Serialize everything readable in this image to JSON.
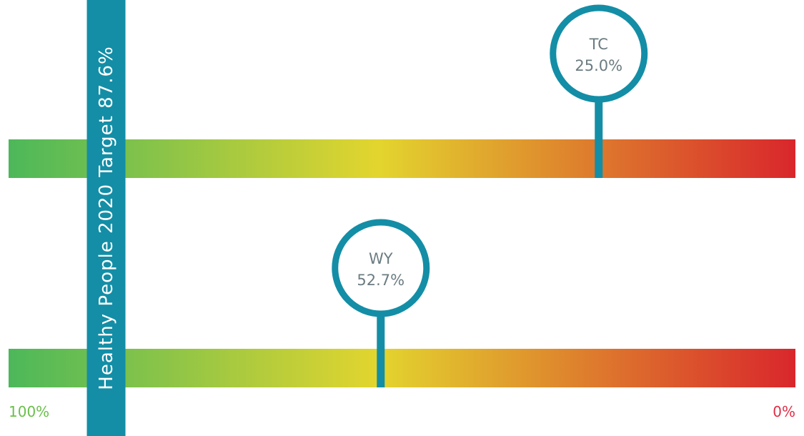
{
  "chart_data": {
    "type": "bar",
    "axis": {
      "min_label": "100%",
      "max_label": "0%",
      "range": [
        100,
        0
      ]
    },
    "target": {
      "label": "Healthy People 2020 Target 87.6%",
      "value": 87.6
    },
    "series": [
      {
        "label": "TC",
        "value": 25.0,
        "value_text": "25.0%"
      },
      {
        "label": "WY",
        "value": 52.7,
        "value_text": "52.7%"
      }
    ],
    "gradient_colors": [
      "#4cb85a",
      "#e3d52e",
      "#d9262c"
    ],
    "marker_color": "#138ea6",
    "start_label_color": "#6abf4b",
    "end_label_color": "#e02f47"
  }
}
